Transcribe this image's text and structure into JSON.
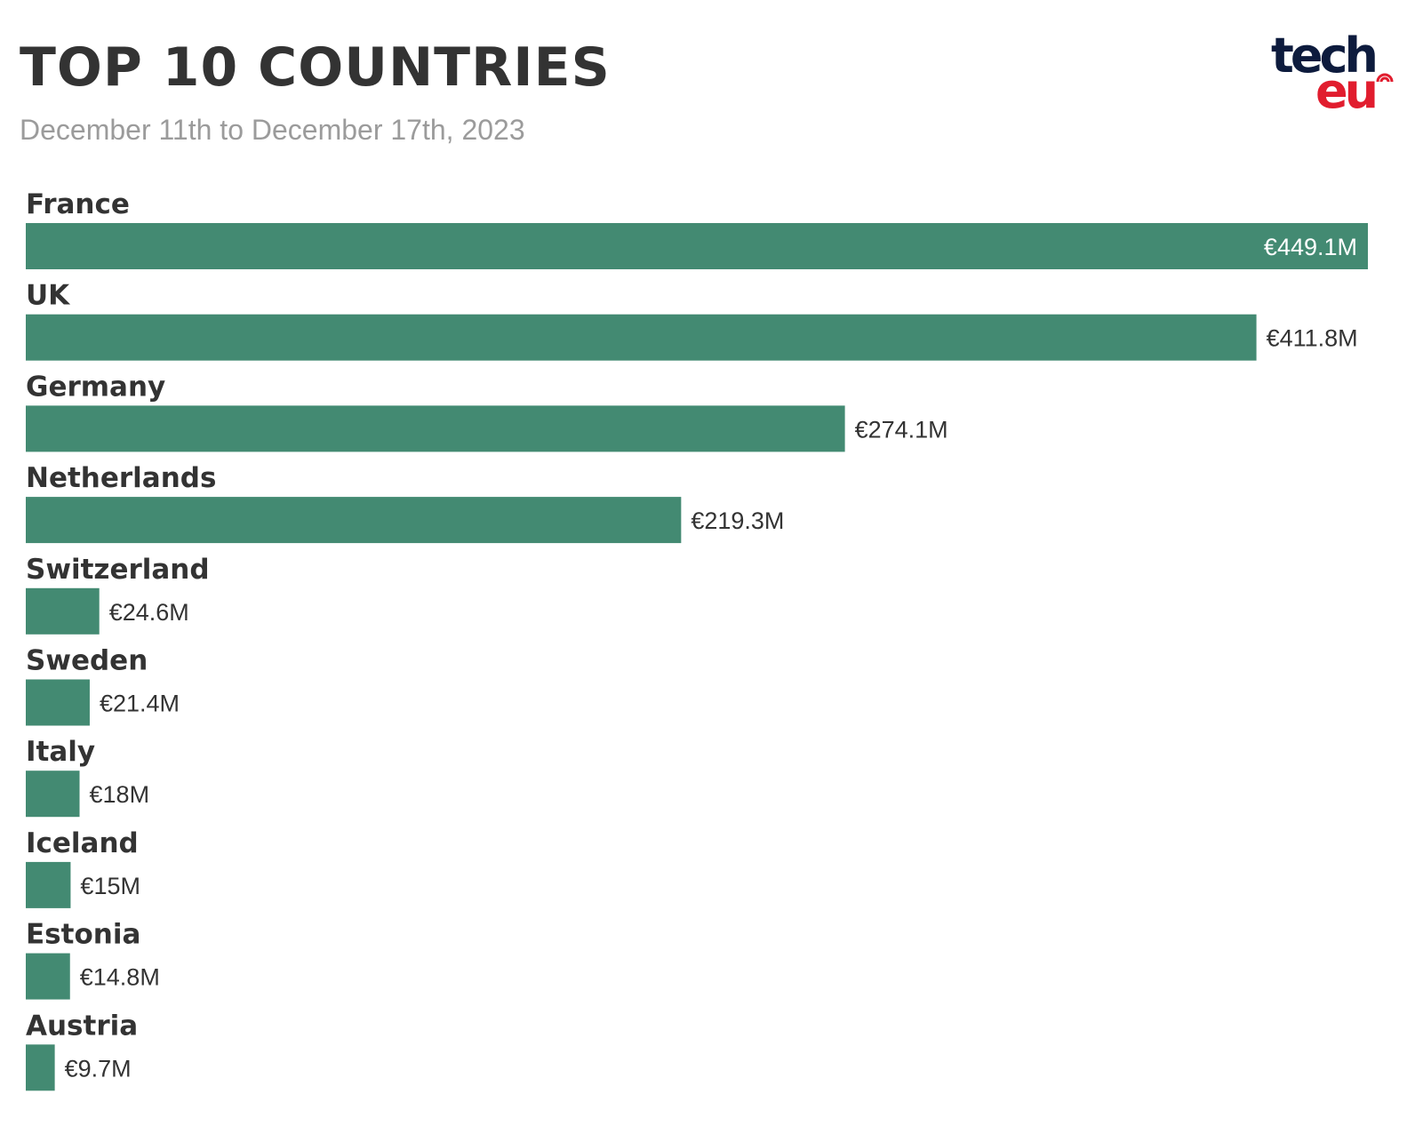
{
  "header": {
    "title": "TOP 10 COUNTRIES",
    "subtitle": "December 11th to December 17th, 2023"
  },
  "logo": {
    "line1": "tech",
    "line2": "eu",
    "colors": {
      "line1": "#0d1b3d",
      "line2": "#e11d2e"
    }
  },
  "colors": {
    "bar": "#438a72",
    "label": "#333333",
    "value_inside": "#ffffff"
  },
  "chart_data": {
    "type": "bar",
    "orientation": "horizontal",
    "title": "TOP 10 COUNTRIES",
    "subtitle": "December 11th to December 17th, 2023",
    "categories": [
      "France",
      "UK",
      "Germany",
      "Netherlands",
      "Switzerland",
      "Sweden",
      "Italy",
      "Iceland",
      "Estonia",
      "Austria"
    ],
    "values": [
      449.1,
      411.8,
      274.1,
      219.3,
      24.6,
      21.4,
      18,
      15,
      14.8,
      9.7
    ],
    "value_labels": [
      "€449.1M",
      "€411.8M",
      "€274.1M",
      "€219.3M",
      "€24.6M",
      "€21.4M",
      "€18M",
      "€15M",
      "€14.8M",
      "€9.7M"
    ],
    "xlim": [
      0,
      449.1
    ],
    "grid": false,
    "legend": "none"
  }
}
